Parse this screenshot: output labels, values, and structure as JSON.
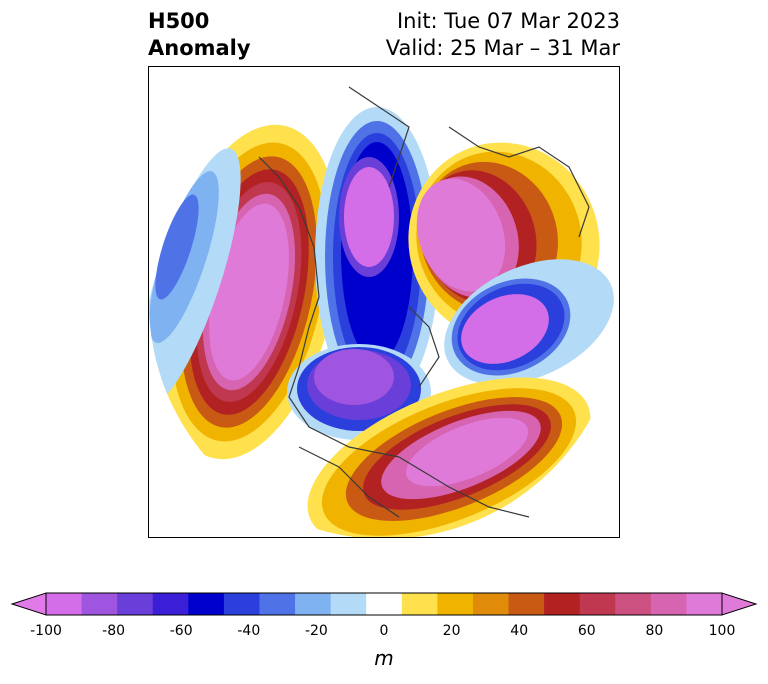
{
  "header": {
    "title_line1": "H500",
    "title_line2": "Anomaly",
    "init": "Init: Tue 07 Mar 2023",
    "valid": "Valid: 25 Mar – 31 Mar"
  },
  "colorbar": {
    "unit": "m",
    "tick_labels": [
      "-100",
      "-80",
      "-60",
      "-40",
      "-20",
      "0",
      "20",
      "40",
      "60",
      "80",
      "100"
    ],
    "colors": [
      "#d36ee8",
      "#9f55e0",
      "#6a3ed8",
      "#3a1fd6",
      "#0000cd",
      "#2a3fdc",
      "#4f72e6",
      "#7eb2f0",
      "#b3dbf7",
      "#ffffff",
      "#ffe04d",
      "#f0b400",
      "#e08c0a",
      "#c85a14",
      "#b22222",
      "#c0384f",
      "#cc5080",
      "#d764b0",
      "#e07ad8"
    ],
    "min_color": "#e07ae8",
    "max_color": "#e07ad8"
  }
}
